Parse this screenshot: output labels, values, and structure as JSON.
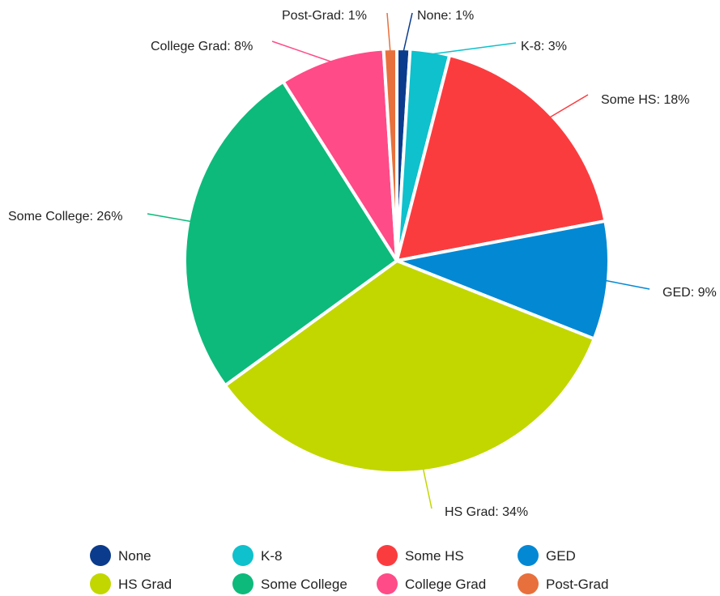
{
  "chart_data": {
    "type": "pie",
    "slices": [
      {
        "name": "None",
        "value": 1,
        "label": "None: 1%",
        "color": "#0b3b8c"
      },
      {
        "name": "K-8",
        "value": 3,
        "label": "K-8: 3%",
        "color": "#0ec1cc"
      },
      {
        "name": "Some HS",
        "value": 18,
        "label": "Some HS: 18%",
        "color": "#fb3c3f"
      },
      {
        "name": "GED",
        "value": 9,
        "label": "GED: 9%",
        "color": "#0388d4"
      },
      {
        "name": "HS Grad",
        "value": 34,
        "label": "HS Grad: 34%",
        "color": "#c2d700"
      },
      {
        "name": "Some College",
        "value": 26,
        "label": "Some College: 26%",
        "color": "#0dba7b"
      },
      {
        "name": "College Grad",
        "value": 8,
        "label": "College Grad: 8%",
        "color": "#ff4b87"
      },
      {
        "name": "Post-Grad",
        "value": 1,
        "label": "Post-Grad: 1%",
        "color": "#e8703c"
      }
    ],
    "legend": {
      "position": "bottom",
      "items": [
        "None",
        "K-8",
        "Some HS",
        "GED",
        "HS Grad",
        "Some College",
        "College Grad",
        "Post-Grad"
      ]
    }
  }
}
